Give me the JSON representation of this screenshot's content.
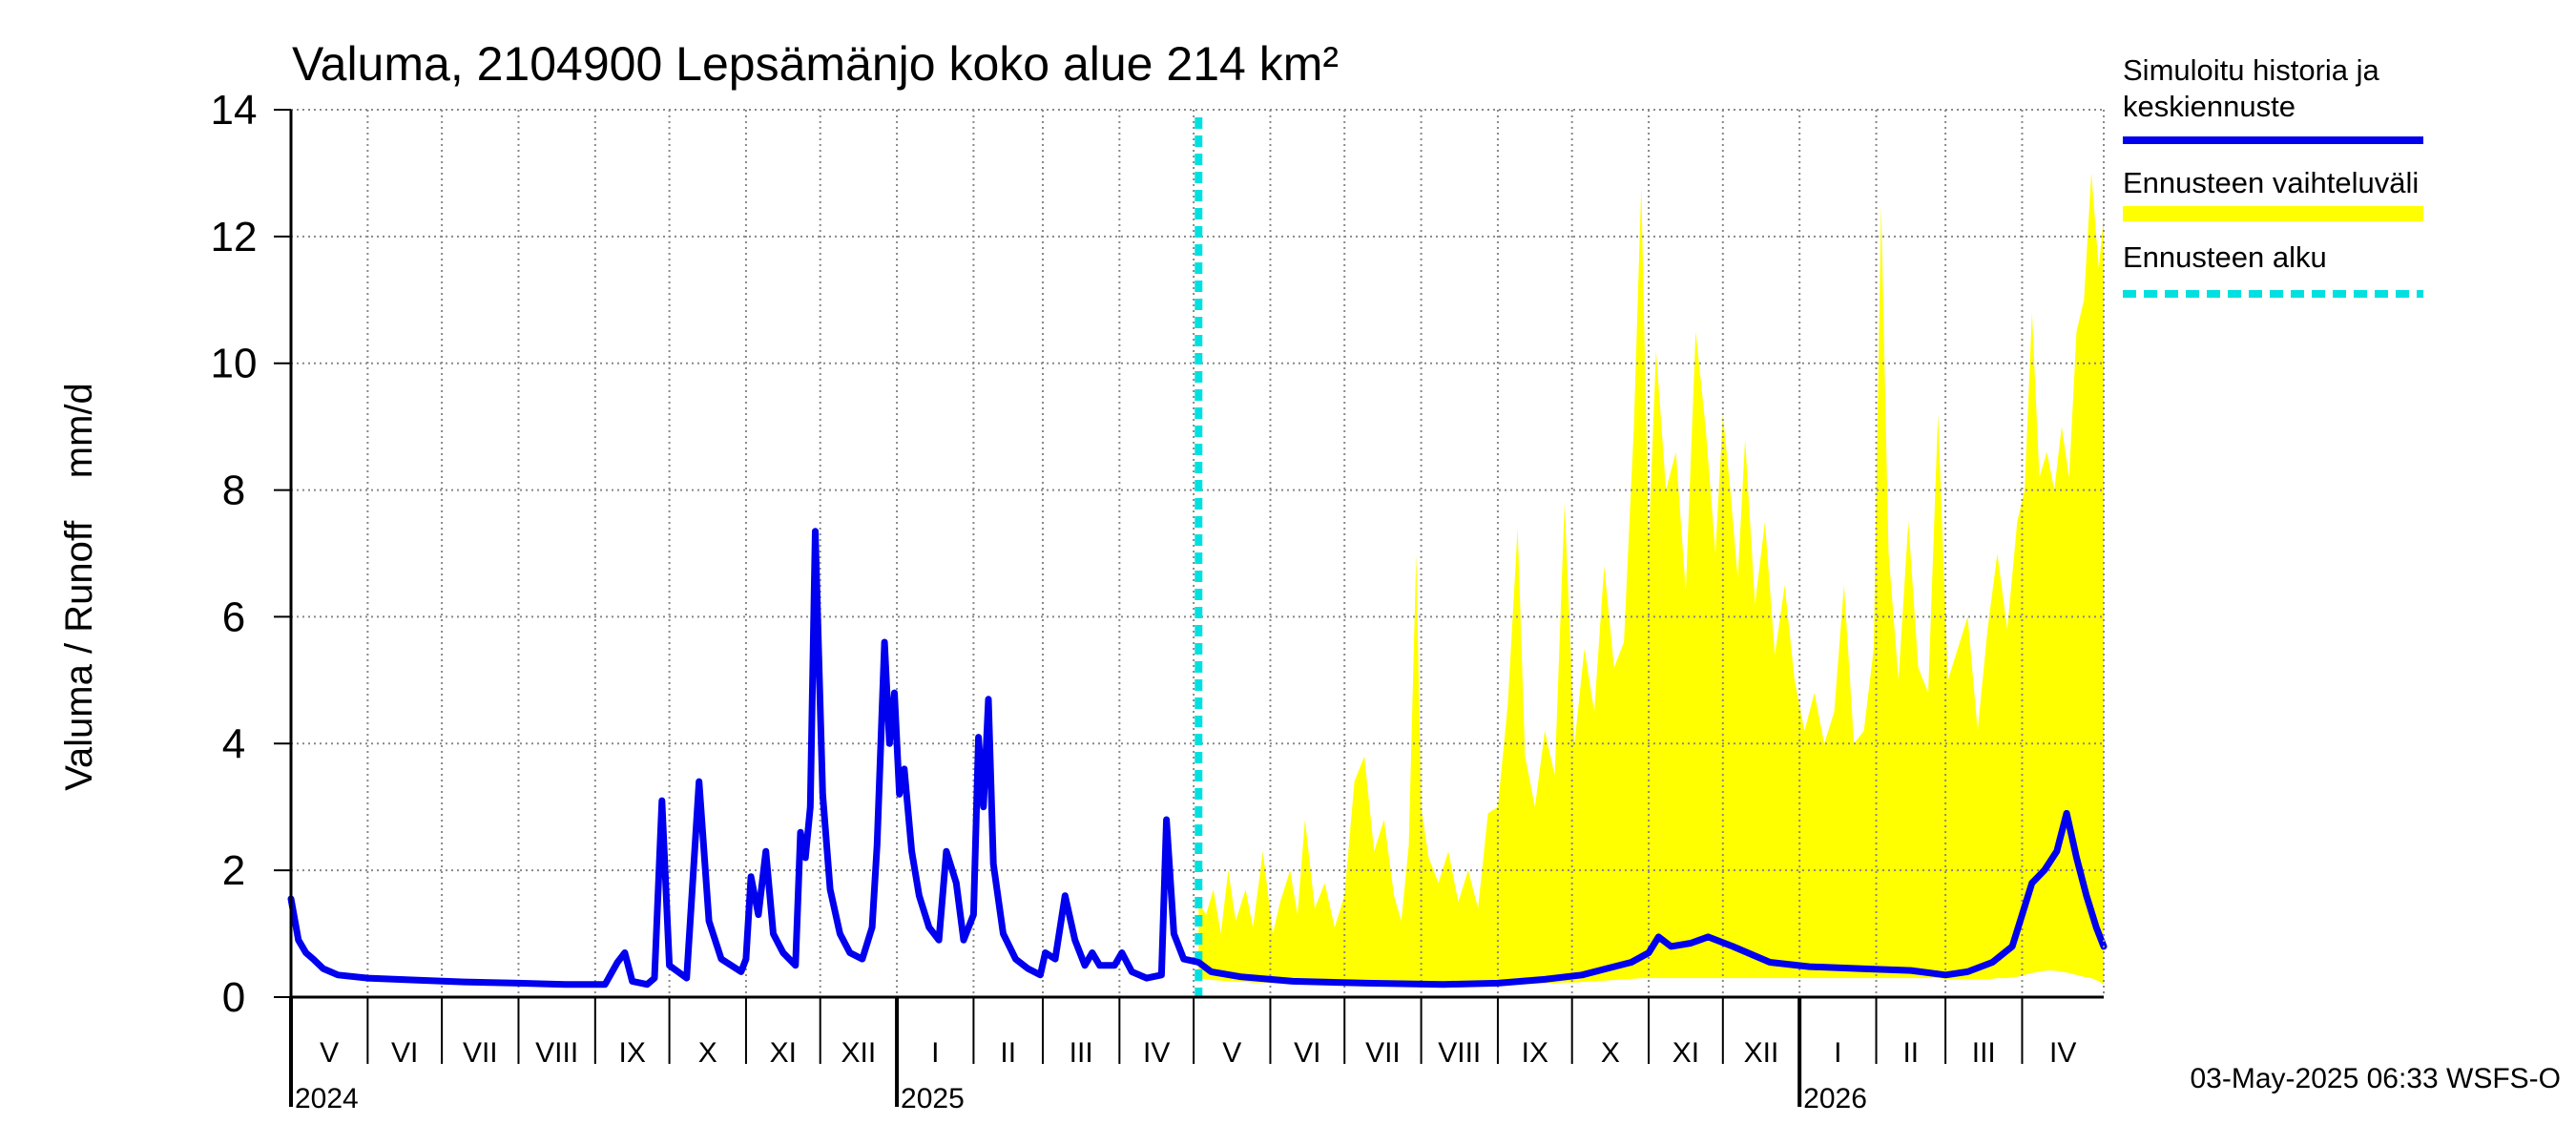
{
  "chart_data": {
    "type": "area",
    "title": "Valuma, 2104900 Lepsämänjo koko alue 214 km²",
    "ylabel": "Valuma / Runoff    mm/d",
    "xlabel": "",
    "ylim": [
      0,
      14
    ],
    "yticks": [
      0,
      2,
      4,
      6,
      8,
      10,
      12,
      14
    ],
    "xlim": [
      "2024-05-01",
      "2026-05-04"
    ],
    "grid": true,
    "legend_position": "right",
    "month_labels": [
      {
        "label": "V",
        "start": "2024-05-01"
      },
      {
        "label": "VI",
        "start": "2024-06-01"
      },
      {
        "label": "VII",
        "start": "2024-07-01"
      },
      {
        "label": "VIII",
        "start": "2024-08-01"
      },
      {
        "label": "IX",
        "start": "2024-09-01"
      },
      {
        "label": "X",
        "start": "2024-10-01"
      },
      {
        "label": "XI",
        "start": "2024-11-01"
      },
      {
        "label": "XII",
        "start": "2024-12-01"
      },
      {
        "label": "I",
        "start": "2025-01-01"
      },
      {
        "label": "II",
        "start": "2025-02-01"
      },
      {
        "label": "III",
        "start": "2025-03-01"
      },
      {
        "label": "IV",
        "start": "2025-04-01"
      },
      {
        "label": "V",
        "start": "2025-05-01"
      },
      {
        "label": "VI",
        "start": "2025-06-01"
      },
      {
        "label": "VII",
        "start": "2025-07-01"
      },
      {
        "label": "VIII",
        "start": "2025-08-01"
      },
      {
        "label": "IX",
        "start": "2025-09-01"
      },
      {
        "label": "X",
        "start": "2025-10-01"
      },
      {
        "label": "XI",
        "start": "2025-11-01"
      },
      {
        "label": "XII",
        "start": "2025-12-01"
      },
      {
        "label": "I",
        "start": "2026-01-01"
      },
      {
        "label": "II",
        "start": "2026-02-01"
      },
      {
        "label": "III",
        "start": "2026-03-01"
      },
      {
        "label": "IV",
        "start": "2026-04-01"
      }
    ],
    "year_labels": [
      {
        "label": "2024",
        "date": "2024-05-01"
      },
      {
        "label": "2025",
        "date": "2025-01-01"
      },
      {
        "label": "2026",
        "date": "2026-01-01"
      }
    ],
    "forecast_start": "2025-05-03",
    "series": [
      {
        "name": "Simuloitu historia ja keskiennuste",
        "kind": "line",
        "color": "#0000ee",
        "points": [
          [
            "2024-05-01",
            1.55
          ],
          [
            "2024-05-04",
            0.9
          ],
          [
            "2024-05-07",
            0.7
          ],
          [
            "2024-05-10",
            0.6
          ],
          [
            "2024-05-14",
            0.45
          ],
          [
            "2024-05-20",
            0.35
          ],
          [
            "2024-06-01",
            0.3
          ],
          [
            "2024-06-20",
            0.27
          ],
          [
            "2024-07-10",
            0.24
          ],
          [
            "2024-08-01",
            0.22
          ],
          [
            "2024-08-20",
            0.2
          ],
          [
            "2024-09-05",
            0.2
          ],
          [
            "2024-09-10",
            0.55
          ],
          [
            "2024-09-13",
            0.7
          ],
          [
            "2024-09-16",
            0.25
          ],
          [
            "2024-09-22",
            0.2
          ],
          [
            "2024-09-25",
            0.3
          ],
          [
            "2024-09-28",
            3.1
          ],
          [
            "2024-10-01",
            0.5
          ],
          [
            "2024-10-08",
            0.3
          ],
          [
            "2024-10-13",
            3.4
          ],
          [
            "2024-10-17",
            1.2
          ],
          [
            "2024-10-22",
            0.6
          ],
          [
            "2024-10-30",
            0.4
          ],
          [
            "2024-11-01",
            0.6
          ],
          [
            "2024-11-03",
            1.9
          ],
          [
            "2024-11-06",
            1.3
          ],
          [
            "2024-11-09",
            2.3
          ],
          [
            "2024-11-12",
            1.0
          ],
          [
            "2024-11-16",
            0.7
          ],
          [
            "2024-11-21",
            0.5
          ],
          [
            "2024-11-23",
            2.6
          ],
          [
            "2024-11-25",
            2.2
          ],
          [
            "2024-11-27",
            3.0
          ],
          [
            "2024-11-29",
            7.35
          ],
          [
            "2024-12-02",
            3.2
          ],
          [
            "2024-12-05",
            1.7
          ],
          [
            "2024-12-09",
            1.0
          ],
          [
            "2024-12-13",
            0.7
          ],
          [
            "2024-12-18",
            0.6
          ],
          [
            "2024-12-22",
            1.1
          ],
          [
            "2024-12-24",
            2.4
          ],
          [
            "2024-12-27",
            5.6
          ],
          [
            "2024-12-29",
            4.0
          ],
          [
            "2024-12-31",
            4.8
          ],
          [
            "2025-01-02",
            3.2
          ],
          [
            "2025-01-04",
            3.6
          ],
          [
            "2025-01-07",
            2.3
          ],
          [
            "2025-01-10",
            1.6
          ],
          [
            "2025-01-14",
            1.1
          ],
          [
            "2025-01-18",
            0.9
          ],
          [
            "2025-01-21",
            2.3
          ],
          [
            "2025-01-25",
            1.8
          ],
          [
            "2025-01-28",
            0.9
          ],
          [
            "2025-02-01",
            1.3
          ],
          [
            "2025-02-03",
            4.1
          ],
          [
            "2025-02-05",
            3.0
          ],
          [
            "2025-02-07",
            4.7
          ],
          [
            "2025-02-09",
            2.1
          ],
          [
            "2025-02-13",
            1.0
          ],
          [
            "2025-02-18",
            0.6
          ],
          [
            "2025-02-23",
            0.45
          ],
          [
            "2025-02-28",
            0.35
          ],
          [
            "2025-03-02",
            0.7
          ],
          [
            "2025-03-06",
            0.6
          ],
          [
            "2025-03-10",
            1.6
          ],
          [
            "2025-03-14",
            0.9
          ],
          [
            "2025-03-18",
            0.5
          ],
          [
            "2025-03-21",
            0.7
          ],
          [
            "2025-03-24",
            0.5
          ],
          [
            "2025-03-30",
            0.5
          ],
          [
            "2025-04-02",
            0.7
          ],
          [
            "2025-04-06",
            0.4
          ],
          [
            "2025-04-12",
            0.3
          ],
          [
            "2025-04-18",
            0.35
          ],
          [
            "2025-04-20",
            2.8
          ],
          [
            "2025-04-23",
            1.0
          ],
          [
            "2025-04-27",
            0.6
          ],
          [
            "2025-05-03",
            0.55
          ],
          [
            "2025-05-08",
            0.4
          ],
          [
            "2025-05-20",
            0.32
          ],
          [
            "2025-06-10",
            0.25
          ],
          [
            "2025-07-10",
            0.22
          ],
          [
            "2025-08-10",
            0.2
          ],
          [
            "2025-09-01",
            0.22
          ],
          [
            "2025-09-20",
            0.28
          ],
          [
            "2025-10-05",
            0.35
          ],
          [
            "2025-10-15",
            0.45
          ],
          [
            "2025-10-25",
            0.55
          ],
          [
            "2025-11-01",
            0.7
          ],
          [
            "2025-11-05",
            0.95
          ],
          [
            "2025-11-10",
            0.8
          ],
          [
            "2025-11-18",
            0.85
          ],
          [
            "2025-11-25",
            0.95
          ],
          [
            "2025-12-05",
            0.8
          ],
          [
            "2025-12-20",
            0.55
          ],
          [
            "2026-01-05",
            0.48
          ],
          [
            "2026-01-25",
            0.45
          ],
          [
            "2026-02-15",
            0.42
          ],
          [
            "2026-03-01",
            0.35
          ],
          [
            "2026-03-10",
            0.4
          ],
          [
            "2026-03-20",
            0.55
          ],
          [
            "2026-03-28",
            0.8
          ],
          [
            "2026-04-01",
            1.3
          ],
          [
            "2026-04-05",
            1.8
          ],
          [
            "2026-04-10",
            2.0
          ],
          [
            "2026-04-15",
            2.3
          ],
          [
            "2026-04-19",
            2.9
          ],
          [
            "2026-04-23",
            2.2
          ],
          [
            "2026-04-27",
            1.6
          ],
          [
            "2026-05-01",
            1.1
          ],
          [
            "2026-05-04",
            0.8
          ]
        ]
      },
      {
        "name": "Ennusteen vaihteluväli",
        "kind": "band",
        "color": "#ffff00",
        "points": [
          [
            "2025-05-03",
            0.3,
            1.5
          ],
          [
            "2025-05-06",
            0.28,
            1.3
          ],
          [
            "2025-05-09",
            0.27,
            1.7
          ],
          [
            "2025-05-12",
            0.26,
            1.0
          ],
          [
            "2025-05-15",
            0.25,
            2.0
          ],
          [
            "2025-05-18",
            0.25,
            1.2
          ],
          [
            "2025-05-22",
            0.24,
            1.7
          ],
          [
            "2025-05-25",
            0.23,
            1.1
          ],
          [
            "2025-05-29",
            0.23,
            2.3
          ],
          [
            "2025-06-02",
            0.22,
            1.0
          ],
          [
            "2025-06-05",
            0.22,
            1.5
          ],
          [
            "2025-06-09",
            0.21,
            2.0
          ],
          [
            "2025-06-12",
            0.21,
            1.3
          ],
          [
            "2025-06-15",
            0.2,
            2.8
          ],
          [
            "2025-06-19",
            0.2,
            1.4
          ],
          [
            "2025-06-23",
            0.2,
            1.8
          ],
          [
            "2025-06-27",
            0.2,
            1.1
          ],
          [
            "2025-07-01",
            0.2,
            1.6
          ],
          [
            "2025-07-05",
            0.19,
            3.4
          ],
          [
            "2025-07-09",
            0.19,
            3.8
          ],
          [
            "2025-07-13",
            0.19,
            2.3
          ],
          [
            "2025-07-17",
            0.19,
            2.8
          ],
          [
            "2025-07-21",
            0.18,
            1.6
          ],
          [
            "2025-07-24",
            0.18,
            1.2
          ],
          [
            "2025-07-27",
            0.18,
            2.4
          ],
          [
            "2025-07-30",
            0.18,
            7.0
          ],
          [
            "2025-08-01",
            0.18,
            3.0
          ],
          [
            "2025-08-04",
            0.18,
            2.2
          ],
          [
            "2025-08-08",
            0.18,
            1.8
          ],
          [
            "2025-08-12",
            0.18,
            2.3
          ],
          [
            "2025-08-16",
            0.18,
            1.5
          ],
          [
            "2025-08-20",
            0.18,
            2.0
          ],
          [
            "2025-08-24",
            0.19,
            1.4
          ],
          [
            "2025-08-28",
            0.19,
            2.9
          ],
          [
            "2025-09-01",
            0.2,
            3.0
          ],
          [
            "2025-09-05",
            0.2,
            4.6
          ],
          [
            "2025-09-09",
            0.2,
            7.4
          ],
          [
            "2025-09-12",
            0.2,
            3.8
          ],
          [
            "2025-09-16",
            0.21,
            3.0
          ],
          [
            "2025-09-20",
            0.22,
            4.2
          ],
          [
            "2025-09-24",
            0.22,
            3.5
          ],
          [
            "2025-09-28",
            0.23,
            7.8
          ],
          [
            "2025-10-02",
            0.23,
            4.0
          ],
          [
            "2025-10-06",
            0.24,
            5.5
          ],
          [
            "2025-10-10",
            0.25,
            4.5
          ],
          [
            "2025-10-14",
            0.26,
            6.8
          ],
          [
            "2025-10-18",
            0.27,
            5.2
          ],
          [
            "2025-10-22",
            0.28,
            5.6
          ],
          [
            "2025-10-26",
            0.29,
            9.0
          ],
          [
            "2025-10-29",
            0.3,
            12.8
          ],
          [
            "2025-11-01",
            0.3,
            7.2
          ],
          [
            "2025-11-04",
            0.3,
            10.2
          ],
          [
            "2025-11-08",
            0.3,
            8.0
          ],
          [
            "2025-11-12",
            0.3,
            8.6
          ],
          [
            "2025-11-16",
            0.3,
            6.4
          ],
          [
            "2025-11-20",
            0.3,
            10.5
          ],
          [
            "2025-11-24",
            0.3,
            9.0
          ],
          [
            "2025-11-28",
            0.3,
            7.0
          ],
          [
            "2025-12-01",
            0.3,
            9.2
          ],
          [
            "2025-12-04",
            0.3,
            8.0
          ],
          [
            "2025-12-07",
            0.3,
            6.6
          ],
          [
            "2025-12-10",
            0.3,
            8.8
          ],
          [
            "2025-12-14",
            0.3,
            6.2
          ],
          [
            "2025-12-18",
            0.3,
            7.5
          ],
          [
            "2025-12-22",
            0.3,
            5.4
          ],
          [
            "2025-12-26",
            0.3,
            6.5
          ],
          [
            "2025-12-30",
            0.3,
            5.0
          ],
          [
            "2026-01-03",
            0.3,
            4.2
          ],
          [
            "2026-01-07",
            0.3,
            4.8
          ],
          [
            "2026-01-11",
            0.3,
            4.0
          ],
          [
            "2026-01-15",
            0.3,
            4.5
          ],
          [
            "2026-01-19",
            0.3,
            6.5
          ],
          [
            "2026-01-23",
            0.3,
            4.0
          ],
          [
            "2026-01-27",
            0.3,
            4.2
          ],
          [
            "2026-01-31",
            0.3,
            5.5
          ],
          [
            "2026-02-03",
            0.3,
            12.5
          ],
          [
            "2026-02-06",
            0.3,
            7.0
          ],
          [
            "2026-02-10",
            0.3,
            5.0
          ],
          [
            "2026-02-14",
            0.3,
            7.5
          ],
          [
            "2026-02-18",
            0.3,
            5.2
          ],
          [
            "2026-02-22",
            0.3,
            4.8
          ],
          [
            "2026-02-26",
            0.3,
            9.2
          ],
          [
            "2026-03-02",
            0.28,
            5.0
          ],
          [
            "2026-03-06",
            0.28,
            5.5
          ],
          [
            "2026-03-10",
            0.28,
            6.0
          ],
          [
            "2026-03-14",
            0.28,
            4.2
          ],
          [
            "2026-03-18",
            0.28,
            5.8
          ],
          [
            "2026-03-22",
            0.3,
            7.0
          ],
          [
            "2026-03-26",
            0.3,
            5.8
          ],
          [
            "2026-03-30",
            0.32,
            7.5
          ],
          [
            "2026-04-02",
            0.35,
            8.0
          ],
          [
            "2026-04-05",
            0.38,
            10.8
          ],
          [
            "2026-04-08",
            0.4,
            8.2
          ],
          [
            "2026-04-11",
            0.42,
            8.6
          ],
          [
            "2026-04-14",
            0.42,
            8.0
          ],
          [
            "2026-04-17",
            0.4,
            9.0
          ],
          [
            "2026-04-20",
            0.38,
            8.2
          ],
          [
            "2026-04-23",
            0.35,
            10.5
          ],
          [
            "2026-04-26",
            0.32,
            11.0
          ],
          [
            "2026-04-29",
            0.3,
            13.0
          ],
          [
            "2026-05-02",
            0.25,
            11.5
          ],
          [
            "2026-05-04",
            0.2,
            12.3
          ]
        ]
      },
      {
        "name": "Ennusteen alku",
        "kind": "vline",
        "color": "#00e0e0"
      }
    ],
    "footer": "03-May-2025 06:33 WSFS-O"
  }
}
